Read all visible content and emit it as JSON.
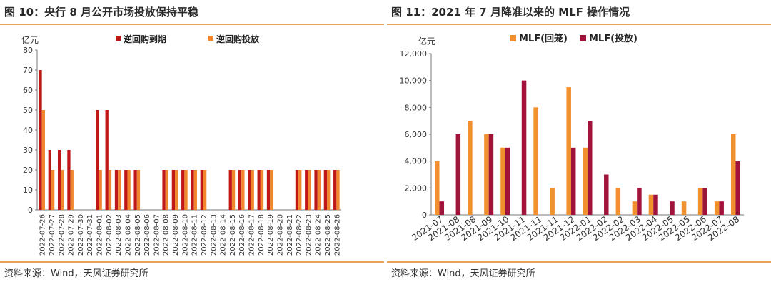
{
  "left": {
    "title": "图 10：央行 8 月公开市场投放保持平稳",
    "source": "资料来源：Wind，天风证券研究所"
  },
  "right": {
    "title": "图 11：2021 年 7 月降准以来的 MLF 操作情况",
    "source": "资料来源：Wind，天风证券研究所"
  },
  "colors": {
    "dark_red": "#c01818",
    "orange": "#f0862e",
    "rule": "#e9a15b",
    "maroon": "#a0143c",
    "mlf_orange": "#f0902e"
  },
  "chart_data": [
    {
      "type": "bar",
      "unit_label": "亿元",
      "ylim": [
        0,
        80
      ],
      "yticks": [
        0,
        10,
        20,
        30,
        40,
        50,
        60,
        70,
        80
      ],
      "legend_position": "top",
      "categories": [
        "2022-07-26",
        "2022-07-27",
        "2022-07-28",
        "2022-07-29",
        "2022-07-30",
        "2022-07-31",
        "2022-08-01",
        "2022-08-02",
        "2022-08-03",
        "2022-08-04",
        "2022-08-05",
        "2022-08-06",
        "2022-08-07",
        "2022-08-08",
        "2022-08-09",
        "2022-08-10",
        "2022-08-11",
        "2022-08-12",
        "2022-08-13",
        "2022-08-14",
        "2022-08-15",
        "2022-08-16",
        "2022-08-17",
        "2022-08-18",
        "2022-08-19",
        "2022-08-20",
        "2022-08-21",
        "2022-08-22",
        "2022-08-23",
        "2022-08-24",
        "2022-08-25",
        "2022-08-26"
      ],
      "series": [
        {
          "name": "逆回购到期",
          "color": "#c01818",
          "values": [
            70,
            30,
            30,
            30,
            0,
            0,
            50,
            50,
            20,
            20,
            20,
            0,
            0,
            20,
            20,
            20,
            20,
            20,
            0,
            0,
            20,
            20,
            20,
            20,
            20,
            0,
            0,
            20,
            20,
            20,
            20,
            20
          ]
        },
        {
          "name": "逆回购投放",
          "color": "#f0862e",
          "values": [
            50,
            20,
            20,
            20,
            0,
            0,
            20,
            20,
            20,
            20,
            20,
            0,
            0,
            20,
            20,
            20,
            20,
            20,
            0,
            0,
            20,
            20,
            20,
            20,
            20,
            0,
            0,
            20,
            20,
            20,
            20,
            20
          ]
        }
      ]
    },
    {
      "type": "bar",
      "unit_label": "亿元",
      "ylim": [
        0,
        12000
      ],
      "yticks": [
        "0",
        "2,000",
        "4,000",
        "6,000",
        "8,000",
        "10,000",
        "12,000"
      ],
      "legend_position": "top",
      "categories": [
        "2021-07",
        "2021-08",
        "2021-08",
        "2021-09",
        "2021-10",
        "2021-11",
        "2021-11",
        "2021-11",
        "2021-12",
        "2022-01",
        "2022-02",
        "2022-02",
        "2022-03",
        "2022-04",
        "2022-05",
        "2022-05",
        "2022-06",
        "2022-07",
        "2022-08"
      ],
      "series": [
        {
          "name": "MLF(回笼)",
          "color": "#f0902e",
          "values": [
            4000,
            0,
            7000,
            6000,
            5000,
            0,
            8000,
            2000,
            9500,
            5000,
            0,
            2000,
            1000,
            1500,
            0,
            1000,
            2000,
            1000,
            6000
          ]
        },
        {
          "name": "MLF(投放)",
          "color": "#a0143c",
          "values": [
            1000,
            6000,
            0,
            6000,
            5000,
            10000,
            0,
            0,
            5000,
            7000,
            3000,
            0,
            2000,
            1500,
            1000,
            0,
            2000,
            1000,
            4000
          ]
        }
      ]
    }
  ]
}
